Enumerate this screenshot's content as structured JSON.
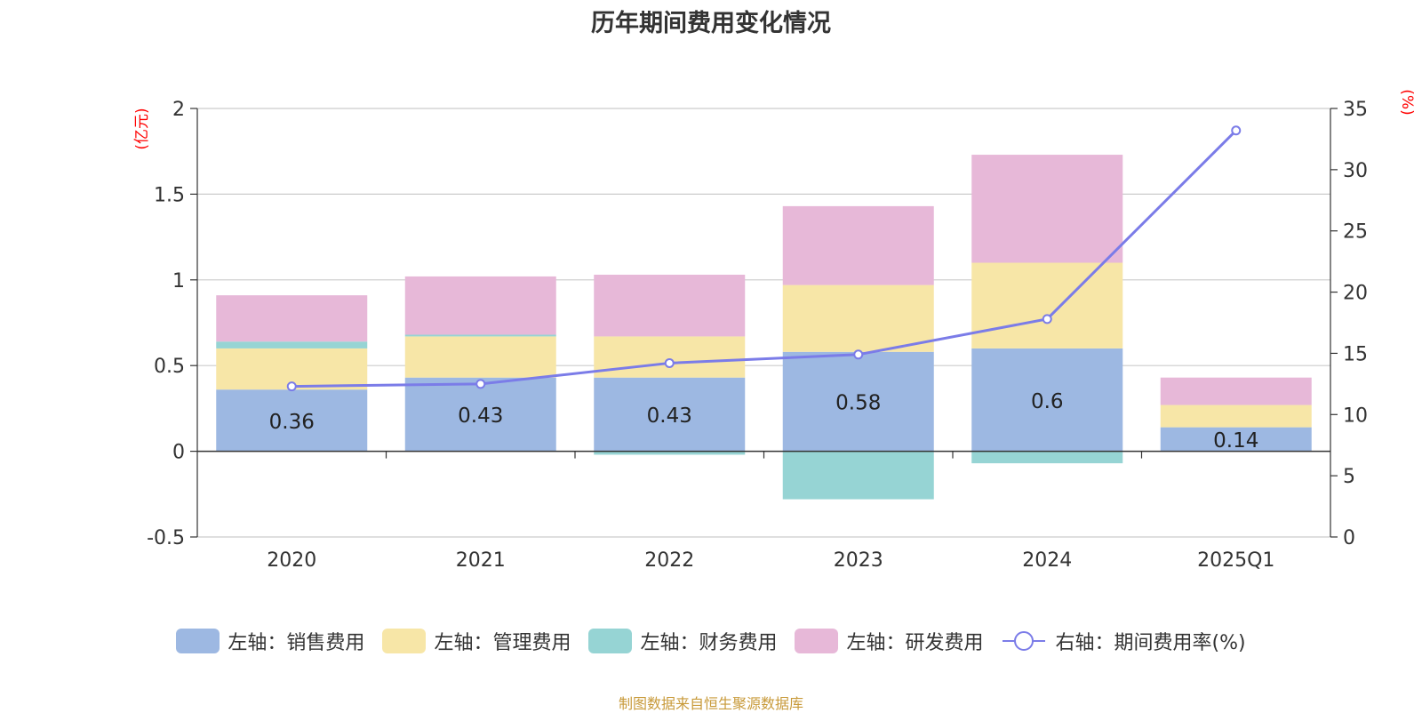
{
  "chart_data": {
    "type": "bar",
    "title": "历年期间费用变化情况",
    "categories": [
      "2020",
      "2021",
      "2022",
      "2023",
      "2024",
      "2025Q1"
    ],
    "left_axis": {
      "unit_label": "(亿元)",
      "ylim": [
        -0.5,
        2
      ],
      "ticks": [
        "-0.5",
        "0",
        "0.5",
        "1",
        "1.5",
        "2"
      ],
      "tick_values": [
        -0.5,
        0,
        0.5,
        1,
        1.5,
        2
      ]
    },
    "right_axis": {
      "unit_label": "(%)",
      "ylim": [
        0,
        35
      ],
      "ticks": [
        "0",
        "5",
        "10",
        "15",
        "20",
        "25",
        "30",
        "35"
      ],
      "tick_values": [
        0,
        5,
        10,
        15,
        20,
        25,
        30,
        35
      ]
    },
    "series": [
      {
        "name": "左轴：销售费用",
        "type": "bar",
        "stack": true,
        "color": "#9db8e2",
        "values": [
          0.36,
          0.43,
          0.43,
          0.58,
          0.6,
          0.14
        ],
        "labels": [
          "0.36",
          "0.43",
          "0.43",
          "0.58",
          "0.6",
          "0.14"
        ]
      },
      {
        "name": "左轴：管理费用",
        "type": "bar",
        "stack": true,
        "color": "#f7e6a7",
        "values": [
          0.24,
          0.24,
          0.24,
          0.39,
          0.5,
          0.13
        ]
      },
      {
        "name": "左轴：财务费用",
        "type": "bar",
        "stack": true,
        "color": "#96d4d4",
        "values": [
          0.04,
          0.01,
          -0.02,
          -0.28,
          -0.07,
          0.0
        ]
      },
      {
        "name": "左轴：研发费用",
        "type": "bar",
        "stack": true,
        "color": "#e7b8d8",
        "values": [
          0.27,
          0.34,
          0.36,
          0.46,
          0.63,
          0.16
        ]
      },
      {
        "name": "右轴：期间费用率(%)",
        "type": "line",
        "axis": "right",
        "color": "#7b7ce8",
        "values": [
          12.3,
          12.5,
          14.2,
          14.9,
          17.8,
          33.2
        ]
      }
    ],
    "legend_position": "bottom-center",
    "grid": true
  },
  "source_text": "制图数据来自恒生聚源数据库"
}
